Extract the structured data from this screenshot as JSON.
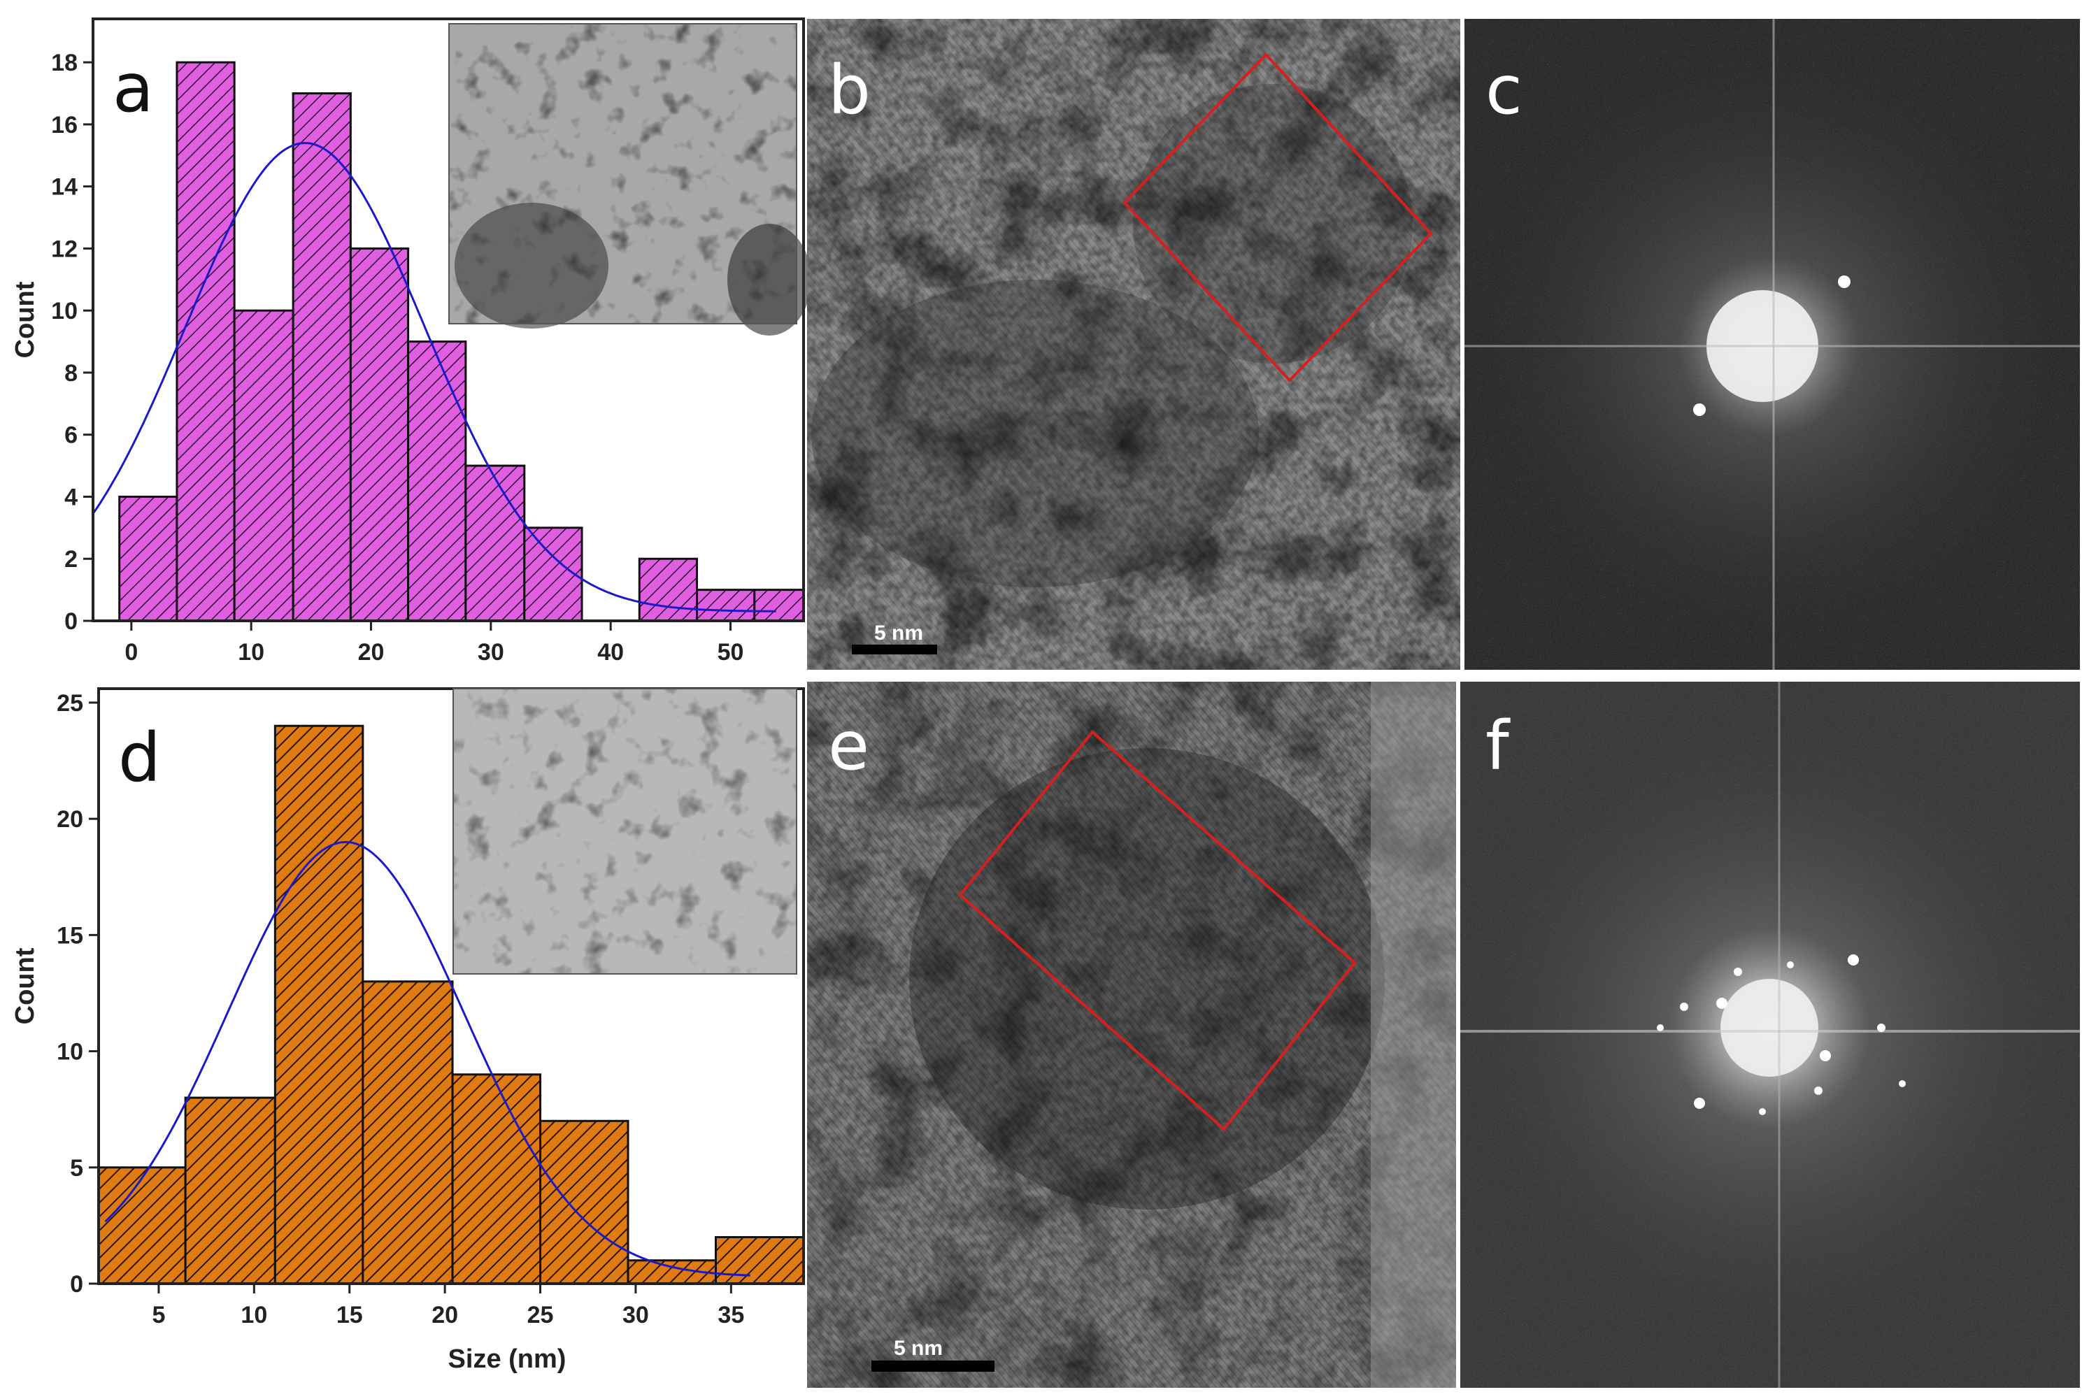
{
  "panels": {
    "a": "a",
    "b": "b",
    "c": "c",
    "d": "d",
    "e": "e",
    "f": "f"
  },
  "scale_bars": {
    "b": "5 nm",
    "e": "5 nm"
  },
  "colors": {
    "hist_a": "#e05ee0",
    "hist_d": "#e07a12",
    "fit": "#1a1ac8",
    "roi": "#d42020",
    "hatch": "#2a1030"
  },
  "chart_data": [
    {
      "type": "bar",
      "panel": "a",
      "xlabel": "",
      "ylabel": "Count",
      "xlim": [
        -3.2,
        56.1
      ],
      "ylim": [
        0,
        19.4
      ],
      "xticks": [
        0,
        10,
        20,
        30,
        40,
        50
      ],
      "yticks": [
        0,
        2,
        4,
        6,
        8,
        10,
        12,
        14,
        16,
        18
      ],
      "bin_edges": [
        -1.0,
        3.8,
        8.6,
        13.5,
        18.3,
        23.1,
        27.9,
        32.8,
        37.6,
        42.4,
        47.2,
        52.0,
        56.8
      ],
      "values": [
        4,
        18,
        10,
        17,
        12,
        9,
        5,
        3,
        0,
        2,
        1,
        1
      ],
      "fit": {
        "type": "gaussian",
        "center": 14.5,
        "peak": 15.4,
        "sigma": 10.0,
        "baseline": 0.3,
        "range": [
          -3.2,
          54
        ]
      },
      "inset": "TEM micrograph"
    },
    {
      "type": "bar",
      "panel": "d",
      "xlabel": "Size (nm)",
      "ylabel": "Count",
      "xlim": [
        1.85,
        38.8
      ],
      "ylim": [
        0,
        25.6
      ],
      "xticks": [
        5,
        10,
        15,
        20,
        25,
        30,
        35
      ],
      "yticks": [
        0,
        5,
        10,
        15,
        20,
        25
      ],
      "bin_edges": [
        1.85,
        6.4,
        11.1,
        15.7,
        20.4,
        25.0,
        29.6,
        34.2,
        38.8
      ],
      "values": [
        5,
        8,
        24,
        13,
        9,
        7,
        1,
        2
      ],
      "fit": {
        "type": "gaussian",
        "center": 14.8,
        "peak": 19.0,
        "sigma": 6.2,
        "baseline": 0.3,
        "range": [
          2.2,
          36
        ]
      },
      "inset": "TEM micrograph"
    }
  ]
}
